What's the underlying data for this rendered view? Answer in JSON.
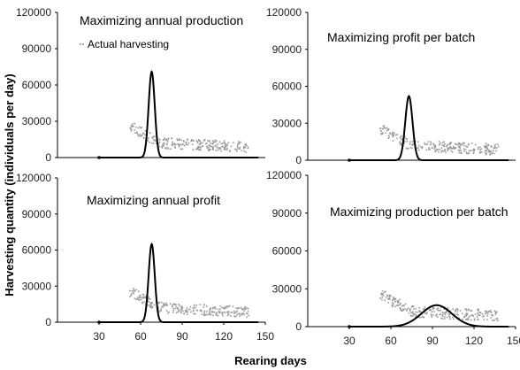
{
  "figure": {
    "xlabel": "Rearing days",
    "ylabel": "Harvesting quantity (individuals per day)"
  },
  "legend": {
    "label": "Actual harvesting"
  },
  "chart_data": [
    {
      "type": "line",
      "title": "Maximizing annual production",
      "xlim": [
        0,
        150
      ],
      "ylim": [
        0,
        120000
      ],
      "yticks": [
        0,
        30000,
        60000,
        90000,
        120000
      ],
      "xticks": [],
      "series": [
        {
          "name": "Actual harvesting",
          "style": "scatter",
          "color": "#999999"
        },
        {
          "style": "line",
          "color": "#000000",
          "peak_x": 68,
          "peak_y": 71000,
          "width_days": 2.2
        }
      ]
    },
    {
      "type": "line",
      "title": "Maximizing profit per batch",
      "xlim": [
        0,
        150
      ],
      "ylim": [
        0,
        120000
      ],
      "yticks": [
        0,
        30000,
        60000,
        90000,
        120000
      ],
      "xticks": [],
      "series": [
        {
          "name": "Actual harvesting",
          "style": "scatter",
          "color": "#999999"
        },
        {
          "style": "line",
          "color": "#000000",
          "peak_x": 73,
          "peak_y": 52000,
          "width_days": 2.6
        }
      ]
    },
    {
      "type": "line",
      "title": "Maximizing annual profit",
      "xlim": [
        0,
        150
      ],
      "ylim": [
        0,
        120000
      ],
      "yticks": [
        0,
        30000,
        60000,
        90000,
        120000
      ],
      "xticks": [
        30,
        60,
        90,
        120,
        150
      ],
      "series": [
        {
          "name": "Actual harvesting",
          "style": "scatter",
          "color": "#999999"
        },
        {
          "style": "line",
          "color": "#000000",
          "peak_x": 68,
          "peak_y": 65000,
          "width_days": 2.2
        }
      ]
    },
    {
      "type": "line",
      "title": "Maximizing production per batch",
      "xlim": [
        0,
        150
      ],
      "ylim": [
        0,
        120000
      ],
      "yticks": [
        0,
        30000,
        60000,
        90000,
        120000
      ],
      "xticks": [
        30,
        60,
        90,
        120,
        150
      ],
      "series": [
        {
          "name": "Actual harvesting",
          "style": "scatter",
          "color": "#999999"
        },
        {
          "style": "line",
          "color": "#000000",
          "peak_x": 93,
          "peak_y": 17000,
          "width_days": 11
        }
      ]
    }
  ]
}
